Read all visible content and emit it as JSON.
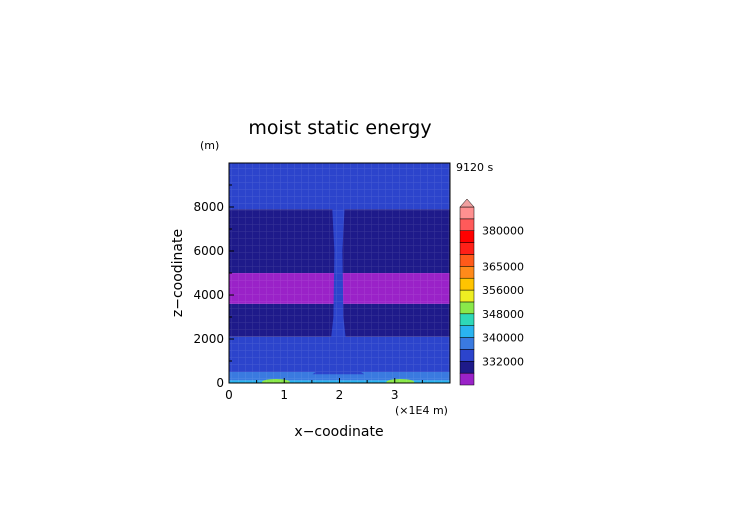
{
  "chart_data": {
    "type": "heatmap",
    "title": "moist static energy",
    "xlabel": "x−coodinate",
    "ylabel": "z−coodinate",
    "y_unit": "(m)",
    "x_unit": "(×1E4 m)",
    "time_label": "9120 s",
    "xlim": [
      0,
      4
    ],
    "ylim": [
      0,
      10000
    ],
    "x_ticks": [
      "0",
      "1",
      "2",
      "3"
    ],
    "x_tick_values": [
      0,
      1,
      2,
      3
    ],
    "y_ticks": [
      "0",
      "2000",
      "4000",
      "6000",
      "8000"
    ],
    "y_tick_values": [
      0,
      2000,
      4000,
      6000,
      8000
    ],
    "colorbar": {
      "levels": [
        328000,
        332000,
        336000,
        340000,
        344000,
        348000,
        352000,
        356000,
        360000,
        365000,
        370000,
        375000,
        380000,
        385000,
        390000
      ],
      "colors": [
        "#9a22c8",
        "#1e1a8a",
        "#2c44cc",
        "#3a7ae0",
        "#2ab4f0",
        "#2ed8b8",
        "#8ae84a",
        "#eeee22",
        "#ffc400",
        "#ff8a1a",
        "#ff5a1a",
        "#ff2018",
        "#ff0000",
        "#ff5a5a",
        "#ff9090"
      ],
      "extend_color": "#f0a0a0",
      "labels": [
        "332000",
        "340000",
        "348000",
        "356000",
        "365000",
        "380000"
      ],
      "label_values": [
        332000,
        340000,
        348000,
        356000,
        365000,
        380000
      ]
    },
    "fields": [
      {
        "z_from": 0,
        "z_to": 120,
        "value": 345000
      },
      {
        "z_from": 120,
        "z_to": 500,
        "value": 341000
      },
      {
        "z_from": 500,
        "z_to": 2100,
        "value": 337000
      },
      {
        "z_from": 2100,
        "z_to": 3600,
        "value": 333000
      },
      {
        "z_from": 3600,
        "z_to": 5000,
        "value": 329000
      },
      {
        "z_from": 5000,
        "z_to": 7900,
        "value": 333000
      },
      {
        "z_from": 7900,
        "z_to": 10000,
        "value": 337000
      }
    ],
    "column": {
      "x_center": 1.98,
      "value": 337000
    },
    "surface_maxima": [
      {
        "x": 0.85,
        "value": 352000
      },
      {
        "x": 3.1,
        "value": 352000
      }
    ]
  }
}
